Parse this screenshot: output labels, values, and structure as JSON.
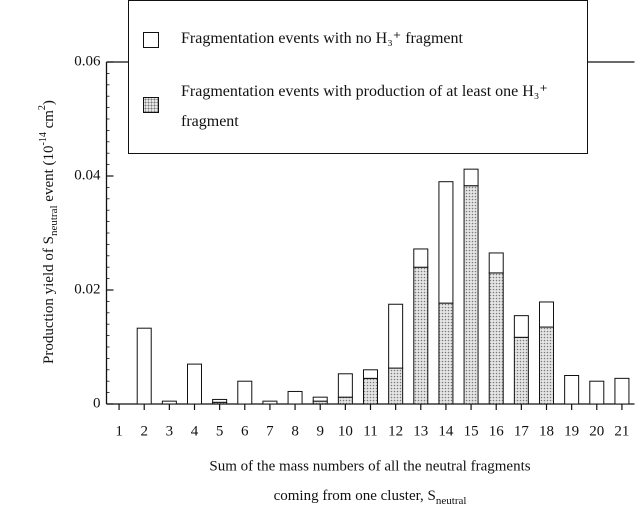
{
  "chart_data": {
    "type": "stacked-bar",
    "categories": [
      "1",
      "2",
      "3",
      "4",
      "5",
      "6",
      "7",
      "8",
      "9",
      "10",
      "11",
      "12",
      "13",
      "14",
      "15",
      "16",
      "17",
      "18",
      "19",
      "20",
      "21"
    ],
    "series": [
      {
        "name": "Fragmentation events with production of at least one H₃⁺ fragment",
        "color": "#9a9a9a",
        "pattern": "dots",
        "values": [
          0,
          0,
          0,
          0,
          0.0003,
          0,
          0,
          0,
          0.0005,
          0.0012,
          0.0045,
          0.0063,
          0.024,
          0.0177,
          0.0383,
          0.023,
          0.0117,
          0.0135,
          0,
          0,
          0
        ]
      },
      {
        "name": "Fragmentation events with no H₃⁺ fragment",
        "color": "#ffffff",
        "values": [
          0,
          0.0133,
          0.0005,
          0.007,
          0.0005,
          0.004,
          0.0005,
          0.0022,
          0.0007,
          0.0041,
          0.0015,
          0.0112,
          0.0032,
          0.0213,
          0.0029,
          0.0035,
          0.0038,
          0.0044,
          0.005,
          0.004,
          0.0045
        ]
      }
    ],
    "ylim": [
      0,
      0.06
    ],
    "yticks": [
      0,
      0.02,
      0.04,
      0.06
    ],
    "ylabel": [
      "Production yield of S",
      "neutral",
      " event   (10",
      "-14",
      " cm",
      "2",
      ")"
    ],
    "xlabel": [
      "Sum of the mass numbers of all the neutral fragments",
      "coming from one cluster, S",
      "neutral"
    ]
  }
}
